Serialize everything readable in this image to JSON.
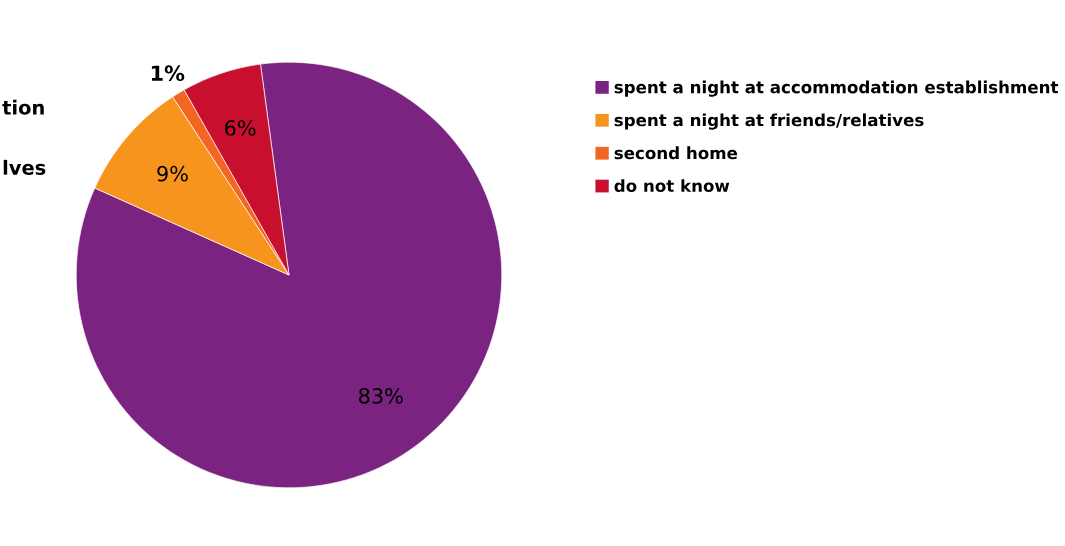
{
  "chart_data": {
    "type": "pie",
    "categories": [
      "spent a night at accommodation establishment",
      "spent a night at friends/relatives",
      "second home",
      "do not know"
    ],
    "values": [
      83,
      9,
      1,
      6
    ],
    "colors": [
      "#7b2381",
      "#f7941d",
      "#f26522",
      "#c8102e"
    ],
    "value_labels": [
      "83%",
      "9%",
      "1%",
      "6%"
    ],
    "legend": "right",
    "annotations": [
      "tion",
      "lves"
    ]
  }
}
